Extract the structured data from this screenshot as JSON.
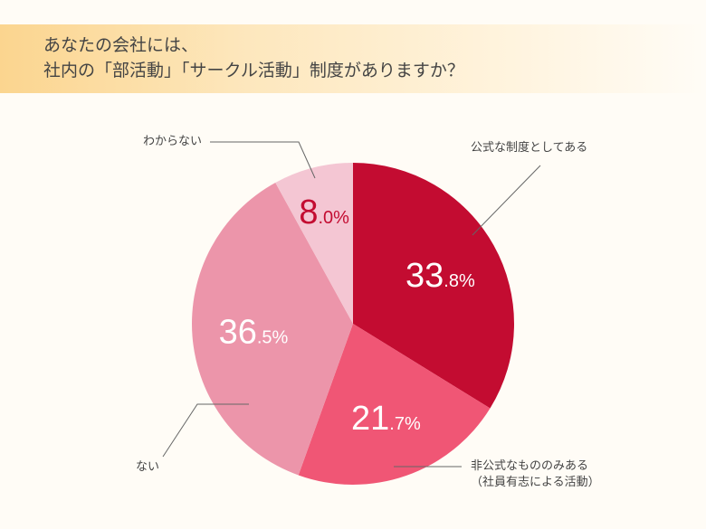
{
  "title_lines": [
    "あなたの会社には、",
    "社内の「部活動」「サークル活動」制度がありますか？"
  ],
  "chart_data": {
    "type": "pie",
    "title": "あなたの会社には、社内の「部活動」「サークル活動」制度がありますか？",
    "start": "12 o'clock, clockwise",
    "slices": [
      {
        "label": "公式な制度としてある",
        "value": 33.8,
        "display_int": "33",
        "display_dec": ".8%",
        "color": "#c30c31",
        "text_color": "#ffffff"
      },
      {
        "label": "非公式なもののみある",
        "label2": "（社員有志による活動）",
        "value": 21.7,
        "display_int": "21",
        "display_dec": ".7%",
        "color": "#f05675",
        "text_color": "#ffffff"
      },
      {
        "label": "ない",
        "value": 36.5,
        "display_int": "36",
        "display_dec": ".5%",
        "color": "#ec95aa",
        "text_color": "#ffffff"
      },
      {
        "label": "わからない",
        "value": 8.0,
        "display_int": "8",
        "display_dec": ".0%",
        "color": "#f4c6d3",
        "text_color": "#c30c31"
      }
    ]
  }
}
